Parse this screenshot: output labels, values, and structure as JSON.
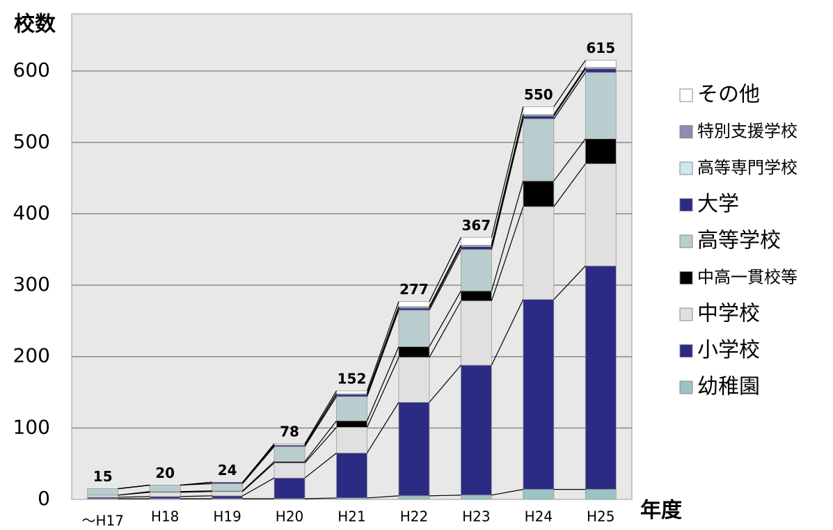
{
  "chart_data": {
    "type": "stacked_bar",
    "y_axis_label": "校数",
    "x_axis_label": "年度",
    "categories": [
      "～H17",
      "H18",
      "H19",
      "H20",
      "H21",
      "H22",
      "H23",
      "H24",
      "H25"
    ],
    "series": [
      {
        "name": "幼稚園",
        "color": "#9cc3c3",
        "values": [
          1,
          1,
          1,
          1,
          2,
          5,
          6,
          14,
          14
        ]
      },
      {
        "name": "小学校",
        "color": "#2b2b84",
        "values": [
          2,
          3,
          4,
          29,
          63,
          131,
          182,
          266,
          313
        ]
      },
      {
        "name": "中学校",
        "color": "#e0e0e0",
        "values": [
          3,
          6,
          6,
          21,
          36,
          63,
          90,
          130,
          143
        ]
      },
      {
        "name": "中高一貫校等",
        "color": "#000000",
        "values": [
          0,
          1,
          1,
          2,
          9,
          15,
          14,
          36,
          35
        ]
      },
      {
        "name": "高等学校",
        "color": "#b9cdcf",
        "values": [
          9,
          9,
          10,
          21,
          34,
          51,
          58,
          87,
          93
        ]
      },
      {
        "name": "大学",
        "color": "#2b2b84",
        "values": [
          0,
          0,
          2,
          2,
          3,
          3,
          4,
          4,
          5
        ]
      },
      {
        "name": "高等専門学校",
        "color": "#d0e8ee",
        "values": [
          0,
          0,
          0,
          0,
          1,
          1,
          1,
          1,
          1
        ]
      },
      {
        "name": "特別支援学校",
        "color": "#8c8cb4",
        "values": [
          0,
          0,
          0,
          0,
          0,
          1,
          1,
          1,
          1
        ]
      },
      {
        "name": "その他",
        "color": "#ffffff",
        "values": [
          0,
          0,
          0,
          2,
          4,
          7,
          11,
          11,
          10
        ]
      }
    ],
    "totals": [
      15,
      20,
      24,
      78,
      152,
      277,
      367,
      550,
      615
    ],
    "ylim": [
      0,
      680
    ],
    "yticks": [
      0,
      100,
      200,
      300,
      400,
      500,
      600
    ],
    "grid": true
  }
}
